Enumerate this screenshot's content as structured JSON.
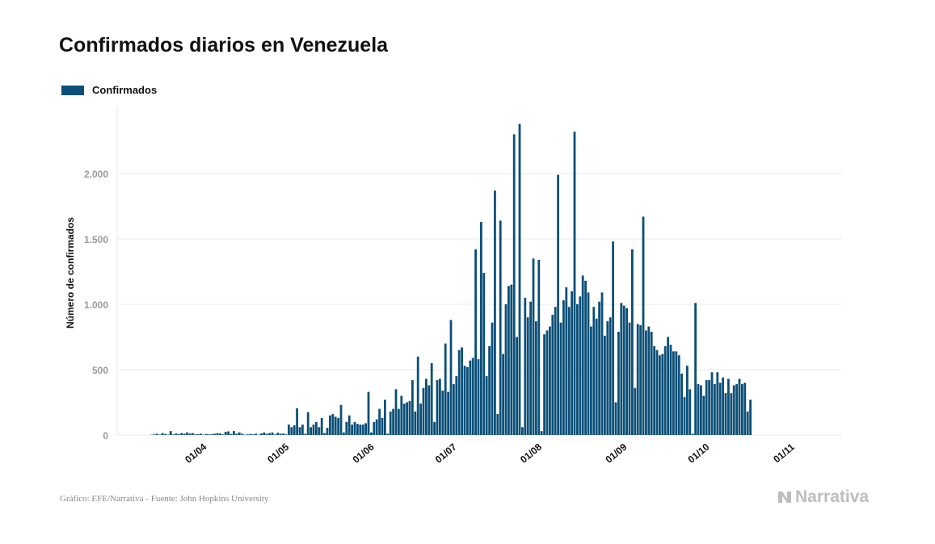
{
  "header": {
    "title": "Confirmados diarios en Venezuela"
  },
  "colors": {
    "bar": "#0b4f78",
    "grid": "#e9e9e9",
    "tick": "#999999",
    "axis_label": "#111111"
  },
  "footer": {
    "source": "Gráfico: EFE/Narrativa - Fuente: John Hopkins University"
  },
  "logo": {
    "text": "Narrativa",
    "icon": "narrativa-logo-icon"
  },
  "chart_data": {
    "type": "bar",
    "title": "Confirmados diarios en Venezuela",
    "xlabel": "",
    "ylabel": "Número de confirmados",
    "ylim": [
      0,
      2500
    ],
    "yticks": [
      0,
      500,
      1000,
      1500,
      2000
    ],
    "ytick_labels": [
      "0",
      "500",
      "1.000",
      "1.500",
      "2.000"
    ],
    "grid": true,
    "legend_position": "top-left",
    "xtick_labels": [
      "01/04",
      "01/05",
      "01/06",
      "01/07",
      "01/08",
      "01/09",
      "01/10",
      "01/11"
    ],
    "start_date": "2020-03-13",
    "series": [
      {
        "name": "Confirmados",
        "values": [
          2,
          5,
          10,
          3,
          15,
          8,
          3,
          30,
          5,
          12,
          7,
          15,
          10,
          20,
          12,
          15,
          5,
          6,
          10,
          3,
          8,
          5,
          7,
          10,
          15,
          12,
          5,
          25,
          28,
          8,
          30,
          10,
          20,
          10,
          3,
          5,
          8,
          5,
          10,
          3,
          12,
          20,
          10,
          15,
          20,
          5,
          18,
          10,
          12,
          5,
          80,
          60,
          75,
          205,
          60,
          80,
          10,
          175,
          60,
          80,
          100,
          60,
          130,
          15,
          55,
          150,
          160,
          140,
          130,
          230,
          20,
          100,
          150,
          80,
          100,
          85,
          80,
          80,
          90,
          330,
          20,
          100,
          120,
          200,
          130,
          270,
          10,
          180,
          200,
          350,
          200,
          300,
          240,
          250,
          260,
          420,
          180,
          600,
          240,
          360,
          430,
          380,
          550,
          100,
          420,
          430,
          340,
          700,
          330,
          880,
          390,
          450,
          650,
          670,
          530,
          520,
          570,
          590,
          1420,
          580,
          1630,
          1240,
          450,
          680,
          860,
          1870,
          160,
          1640,
          620,
          1000,
          1140,
          1150,
          2300,
          750,
          2380,
          60,
          1050,
          900,
          1020,
          1350,
          870,
          1340,
          30,
          770,
          800,
          830,
          920,
          980,
          1990,
          860,
          1030,
          1130,
          980,
          1100,
          2320,
          1000,
          1060,
          1220,
          1180,
          1090,
          830,
          980,
          890,
          1020,
          1090,
          760,
          870,
          900,
          1480,
          250,
          790,
          1010,
          990,
          970,
          860,
          1420,
          360,
          850,
          840,
          1670,
          800,
          830,
          790,
          680,
          650,
          610,
          620,
          680,
          750,
          690,
          640,
          640,
          610,
          470,
          290,
          530,
          350,
          10,
          1010,
          390,
          380,
          300,
          420,
          420,
          480,
          390,
          480,
          400,
          440,
          320,
          430,
          320,
          380,
          390,
          430,
          390,
          400,
          180,
          270
        ]
      }
    ]
  }
}
